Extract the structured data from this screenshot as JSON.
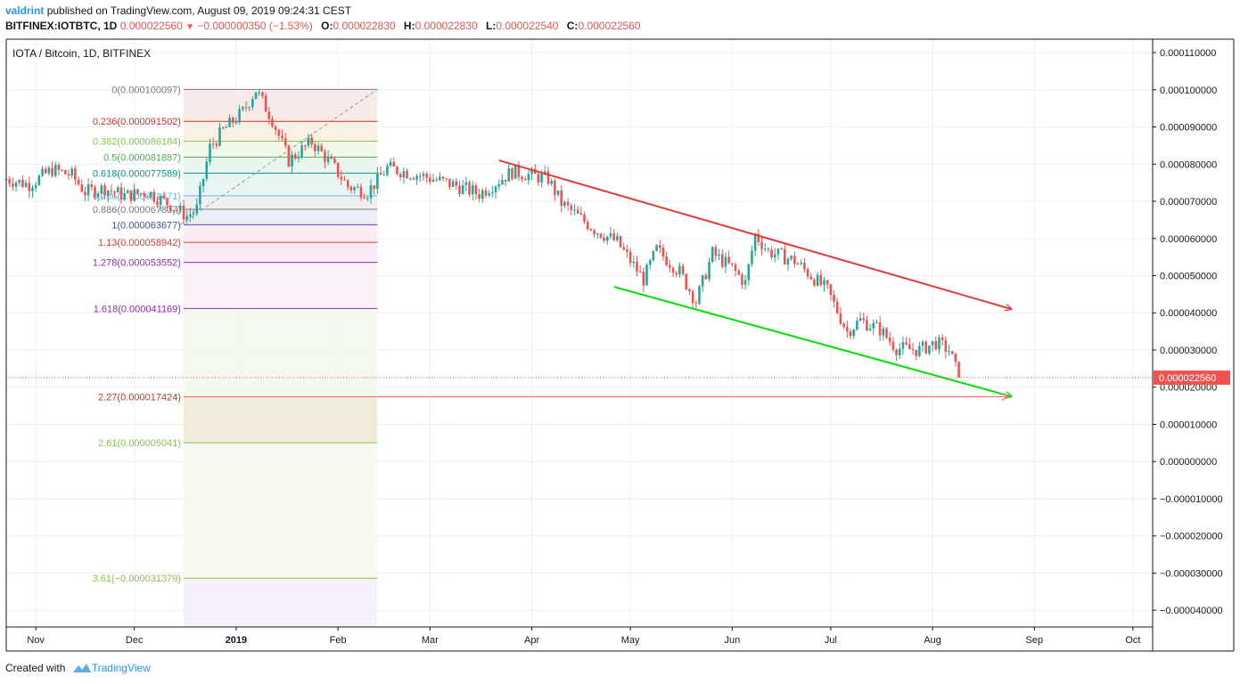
{
  "header": {
    "author": "valdrint",
    "published_text": "published on TradingView.com, August 09, 2019 09:24:31 CEST",
    "symbol": "BITFINEX:IOTBTC, 1D",
    "last": "0.000022560",
    "change": "−0.000000350 (−1.53%)",
    "o_label": "O:",
    "o": "0.000022830",
    "h_label": "H:",
    "h": "0.000022830",
    "l_label": "L:",
    "l": "0.000022540",
    "c_label": "C:",
    "c": "0.000022560",
    "down_arrow": "▼"
  },
  "footer": {
    "created_with": "Created with",
    "brand": "TradingView",
    "logo_icon": "tradingview-logo-icon"
  },
  "colors": {
    "up": "#26a69a",
    "down": "#ef5350",
    "grid": "#e9eff5",
    "axis": "#131722",
    "resistance": "#e53935",
    "support": "#00e100",
    "price_line": "#ef5350",
    "price_label_bg": "#ef5350",
    "arrow_line": "#f06e67"
  },
  "chart_data": {
    "type": "candlestick",
    "title": "IOTA / Bitcoin, 1D, BITFINEX",
    "x_axis": [
      "Nov",
      "Dec",
      "2019",
      "Feb",
      "Mar",
      "Apr",
      "May",
      "Jun",
      "Jul",
      "Aug",
      "Sep",
      "Oct"
    ],
    "y_ticks": [
      "0.000110000",
      "0.000100000",
      "0.000090000",
      "0.000080000",
      "0.000070000",
      "0.000060000",
      "0.000050000",
      "0.000040000",
      "0.000030000",
      "0.000020000",
      "0.000010000",
      "0.000000000",
      "−0.000010000",
      "−0.000020000",
      "−0.000030000",
      "−0.000040000"
    ],
    "y_range": [
      -4.45e-05,
      0.0001136
    ],
    "x_range": [
      "2018-10-23",
      "2019-10-07"
    ],
    "current_price": {
      "value": 2.256e-05,
      "label": "0.000022560"
    },
    "price_path": [
      [
        "2018-10-23",
        7.6e-05
      ],
      [
        "2018-10-30",
        7.45e-05
      ],
      [
        "2018-11-06",
        7.85e-05
      ],
      [
        "2018-11-12",
        7.7e-05
      ],
      [
        "2018-11-16",
        7.25e-05
      ],
      [
        "2018-11-22",
        7.35e-05
      ],
      [
        "2018-11-28",
        7.15e-05
      ],
      [
        "2018-12-05",
        7.25e-05
      ],
      [
        "2018-12-12",
        6.9e-05
      ],
      [
        "2018-12-17",
        6.6e-05
      ],
      [
        "2018-12-20",
        6.8e-05
      ],
      [
        "2018-12-24",
        8.45e-05
      ],
      [
        "2018-12-28",
        8.9e-05
      ],
      [
        "2019-01-03",
        9.4e-05
      ],
      [
        "2019-01-07",
        0.0001
      ],
      [
        "2019-01-12",
        9.2e-05
      ],
      [
        "2019-01-17",
        8.1e-05
      ],
      [
        "2019-01-24",
        8.6e-05
      ],
      [
        "2019-01-30",
        8e-05
      ],
      [
        "2019-02-04",
        7.4e-05
      ],
      [
        "2019-02-10",
        7.25e-05
      ],
      [
        "2019-02-16",
        7.9e-05
      ],
      [
        "2019-02-26",
        7.7e-05
      ],
      [
        "2019-03-08",
        7.45e-05
      ],
      [
        "2019-03-16",
        7.2e-05
      ],
      [
        "2019-03-26",
        7.8e-05
      ],
      [
        "2019-04-06",
        7.6e-05
      ],
      [
        "2019-04-10",
        6.95e-05
      ],
      [
        "2019-04-20",
        6.25e-05
      ],
      [
        "2019-04-27",
        5.9e-05
      ],
      [
        "2019-05-05",
        4.9e-05
      ],
      [
        "2019-05-09",
        5.7e-05
      ],
      [
        "2019-05-16",
        5.1e-05
      ],
      [
        "2019-05-21",
        4.3e-05
      ],
      [
        "2019-05-26",
        5.6e-05
      ],
      [
        "2019-06-01",
        5.2e-05
      ],
      [
        "2019-06-05",
        4.8e-05
      ],
      [
        "2019-06-08",
        6.1e-05
      ],
      [
        "2019-06-12",
        5.65e-05
      ],
      [
        "2019-06-20",
        5.4e-05
      ],
      [
        "2019-06-30",
        4.6e-05
      ],
      [
        "2019-07-06",
        3.5e-05
      ],
      [
        "2019-07-10",
        3.8e-05
      ],
      [
        "2019-07-16",
        3.55e-05
      ],
      [
        "2019-07-21",
        3.05e-05
      ],
      [
        "2019-07-28",
        3e-05
      ],
      [
        "2019-08-02",
        3.2e-05
      ],
      [
        "2019-08-06",
        3e-05
      ],
      [
        "2019-08-09",
        2.26e-05
      ]
    ],
    "fibonacci": {
      "date_range": [
        "2018-12-16",
        "2019-02-13"
      ],
      "levels": [
        {
          "ratio": "0",
          "value": 0.000100097,
          "label": "0(0.000100097)",
          "color": "#787b86",
          "fill": "#f8e6e6"
        },
        {
          "ratio": "0.236",
          "value": 9.1502e-05,
          "label": "0.236(0.000091502)",
          "color": "#d32f2f",
          "fill": "#f8eedf"
        },
        {
          "ratio": "0.382",
          "value": 8.6184e-05,
          "label": "0.382(0.000086184)",
          "color": "#8bc34a",
          "fill": "#eef6e5"
        },
        {
          "ratio": "0.5",
          "value": 8.1887e-05,
          "label": "0.5(0.000081887)",
          "color": "#4caf50",
          "fill": "#e6f4ea"
        },
        {
          "ratio": "0.618",
          "value": 7.7589e-05,
          "label": "0.618(0.000077589)",
          "color": "#089981",
          "fill": "#e5f3f1"
        },
        {
          "ratio": "0.786",
          "value": 7.1471e-05,
          "label": "0.786(0.000071471)",
          "color": "#64b5f6",
          "fill": "#ececec"
        },
        {
          "ratio": "0.886",
          "value": 6.7837e-05,
          "label": "0.886(0.000067837)",
          "color": "#787b86",
          "fill": "#e8eaf6"
        },
        {
          "ratio": "1",
          "value": 6.3677e-05,
          "label": "1(0.000063677)",
          "color": "#3f51b5",
          "fill": "#fbe9ec"
        },
        {
          "ratio": "1.13",
          "value": 5.8942e-05,
          "label": "1.13(0.000058942)",
          "color": "#e53935",
          "fill": "#f8e8f4"
        },
        {
          "ratio": "1.278",
          "value": 5.3552e-05,
          "label": "1.278(0.000053552)",
          "color": "#9c27b0",
          "fill": "#fbeef8"
        },
        {
          "ratio": "1.618",
          "value": 4.1169e-05,
          "label": "1.618(0.000041169)",
          "color": "#9c27b0",
          "fill": "#f2f8ec"
        },
        {
          "ratio": "2.27",
          "value": 1.7424e-05,
          "label": "2.27(0.000017424)",
          "color": "#c0392b",
          "fill": "#efe7d6"
        },
        {
          "ratio": "2.61",
          "value": 5.041e-06,
          "label": "2.61(0.000005041)",
          "color": "#8bc34a",
          "fill": "#f6f9ef"
        },
        {
          "ratio": "3.61",
          "value": -3.1379e-05,
          "label": "3.61(−0.000031379)",
          "color": "#8bc34a",
          "fill": "#f3edfb"
        }
      ]
    },
    "trendlines": [
      {
        "name": "resistance",
        "from": [
          "2019-03-22",
          8.1e-05
        ],
        "to": [
          "2019-08-25",
          4.1e-05
        ],
        "color": "#e53935"
      },
      {
        "name": "support",
        "from": [
          "2019-04-26",
          4.7e-05
        ],
        "to": [
          "2019-08-25",
          1.75e-05
        ],
        "color": "#00e100"
      },
      {
        "name": "fib-2.27-projection",
        "from": [
          "2018-12-16",
          1.7424e-05
        ],
        "to": [
          "2019-08-24",
          1.7424e-05
        ],
        "color": "#f06e67"
      }
    ],
    "fib_diagonal": {
      "from": [
        "2018-12-15",
        6.37e-05
      ],
      "to": [
        "2019-02-13",
        0.0001001
      ]
    }
  }
}
